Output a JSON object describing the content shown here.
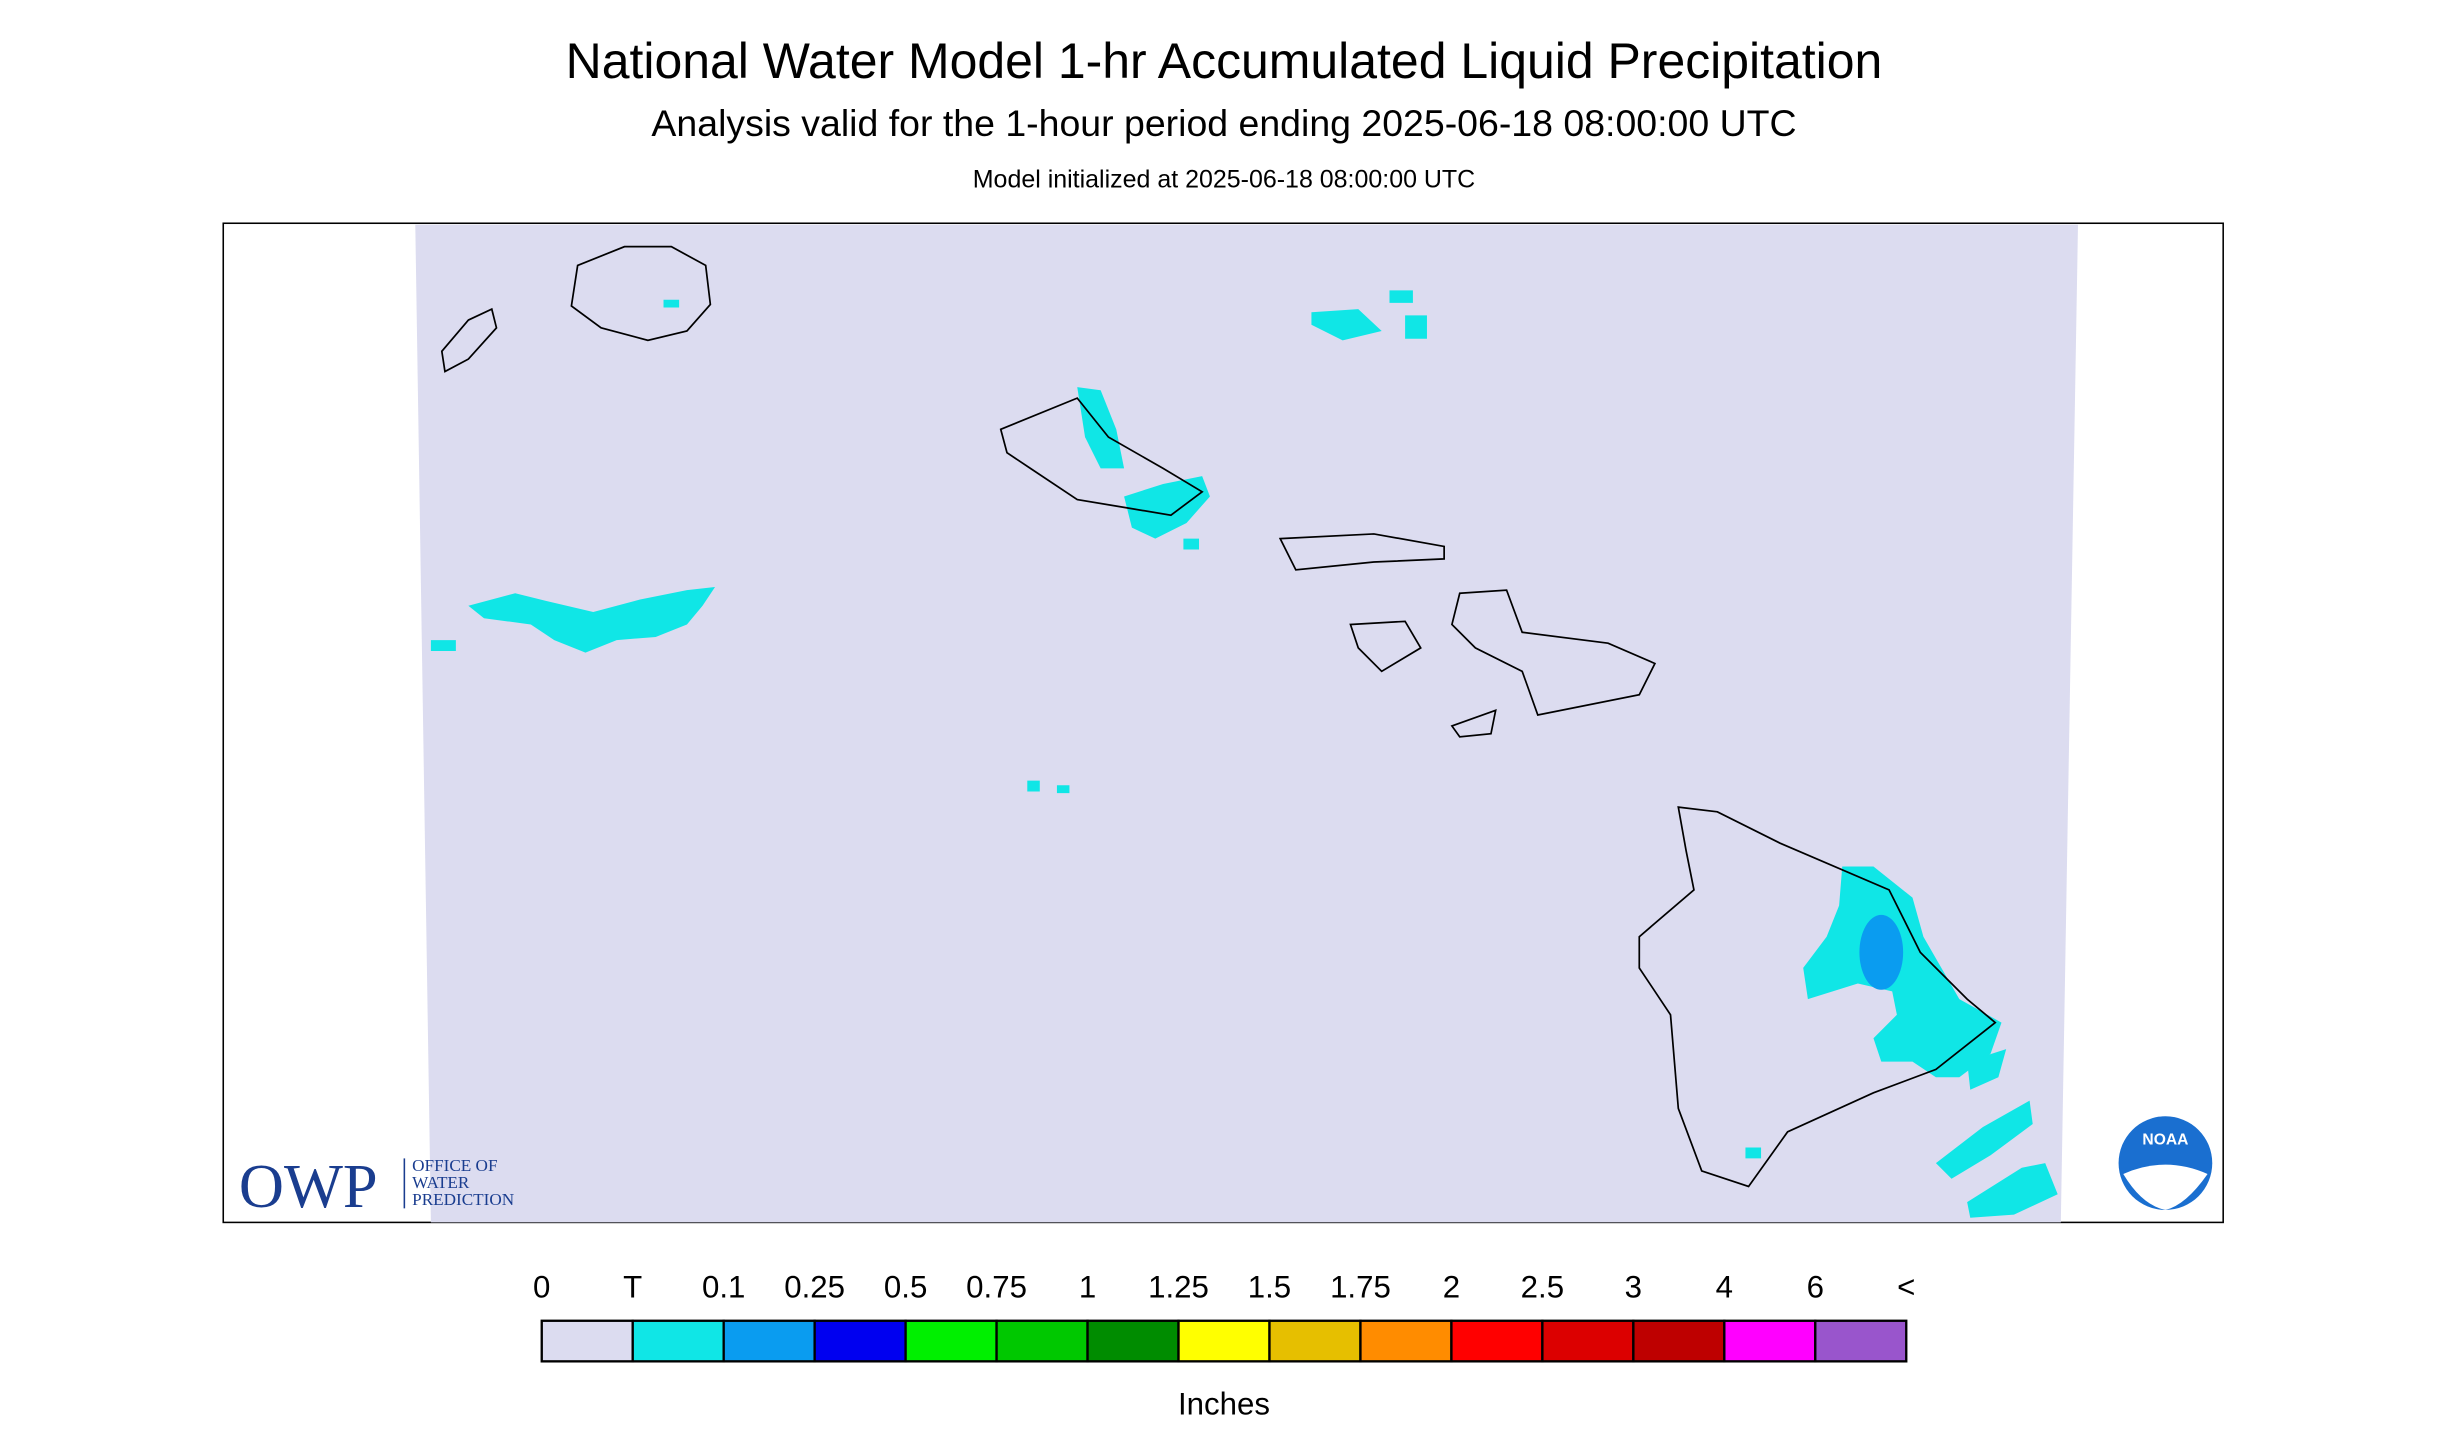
{
  "header": {
    "title": "National Water Model 1-hr Accumulated Liquid Precipitation",
    "subtitle": "Analysis valid for the 1-hour period ending 2025-06-18 08:00:00 UTC",
    "init": "Model initialized at 2025-06-18 08:00:00 UTC"
  },
  "legend": {
    "labels": [
      "0",
      "T",
      "0.1",
      "0.25",
      "0.5",
      "0.75",
      "1",
      "1.25",
      "1.5",
      "1.75",
      "2",
      "2.5",
      "3",
      "4",
      "6",
      "<"
    ],
    "colors": [
      "#dcdcf0",
      "#10e6e6",
      "#0a9cf0",
      "#0000f0",
      "#00f000",
      "#00c800",
      "#008c00",
      "#ffff00",
      "#e6bf00",
      "#ff8c00",
      "#ff0000",
      "#dc0000",
      "#be0000",
      "#ff00ff",
      "#9955cc"
    ],
    "unit": "Inches"
  },
  "logos": {
    "owp": "OWP",
    "owp_lines": [
      "OFFICE OF",
      "WATER",
      "PREDICTION"
    ],
    "noaa": "NOAA"
  }
}
